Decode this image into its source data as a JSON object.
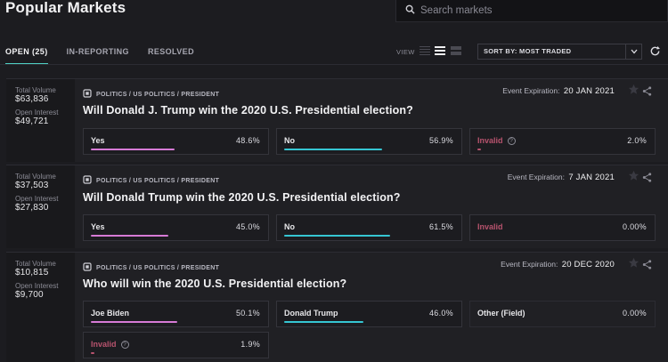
{
  "header": {
    "title": "Popular Markets"
  },
  "search": {
    "placeholder": "Search markets"
  },
  "tabs": [
    {
      "label": "OPEN (25)",
      "active": true
    },
    {
      "label": "IN-REPORTING",
      "active": false
    },
    {
      "label": "RESOLVED",
      "active": false
    }
  ],
  "toolbar": {
    "view_label": "VIEW",
    "sort_label": "SORT BY: MOST TRADED"
  },
  "colors": {
    "accent": "#4fd1c5",
    "yes": "#d67ad6",
    "no": "#36c6d3",
    "invalid": "#b8536e"
  },
  "markets": [
    {
      "total_volume_label": "Total Volume",
      "total_volume": "$63,836",
      "open_interest_label": "Open Interest",
      "open_interest": "$49,721",
      "breadcrumb": "POLITICS / US POLITICS / PRESIDENT",
      "expiration_label": "Event Expiration:",
      "expiration": "20 JAN 2021",
      "question": "Will Donald J. Trump win the 2020 U.S. Presidential election?",
      "outcomes": [
        {
          "label": "Yes",
          "pct": "48.6%",
          "level": 0.486,
          "kind": "yes"
        },
        {
          "label": "No",
          "pct": "56.9%",
          "level": 0.569,
          "kind": "no"
        },
        {
          "label": "Invalid",
          "pct": "2.0%",
          "level": 0.02,
          "kind": "invalid"
        }
      ]
    },
    {
      "total_volume_label": "Total Volume",
      "total_volume": "$37,503",
      "open_interest_label": "Open Interest",
      "open_interest": "$27,830",
      "breadcrumb": "POLITICS / US POLITICS / PRESIDENT",
      "expiration_label": "Event Expiration:",
      "expiration": "7 JAN 2021",
      "question": "Will Donald Trump win the 2020 U.S. Presidential election?",
      "outcomes": [
        {
          "label": "Yes",
          "pct": "45.0%",
          "level": 0.45,
          "kind": "yes"
        },
        {
          "label": "No",
          "pct": "61.5%",
          "level": 0.615,
          "kind": "no"
        },
        {
          "label": "Invalid",
          "pct": "0.00%",
          "level": 0,
          "kind": "invalid"
        }
      ]
    },
    {
      "total_volume_label": "Total Volume",
      "total_volume": "$10,815",
      "open_interest_label": "Open Interest",
      "open_interest": "$9,700",
      "breadcrumb": "POLITICS / US POLITICS / PRESIDENT",
      "expiration_label": "Event Expiration:",
      "expiration": "20 DEC 2020",
      "question": "Who will win the 2020 U.S. Presidential election?",
      "outcomes": [
        {
          "label": "Joe Biden",
          "pct": "50.1%",
          "level": 0.501,
          "kind": "yes"
        },
        {
          "label": "Donald Trump",
          "pct": "46.0%",
          "level": 0.46,
          "kind": "no"
        },
        {
          "label": "Other (Field)",
          "pct": "0.00%",
          "level": 0,
          "kind": "other"
        },
        {
          "label": "Invalid",
          "pct": "1.9%",
          "level": 0.019,
          "kind": "invalid"
        }
      ]
    }
  ]
}
